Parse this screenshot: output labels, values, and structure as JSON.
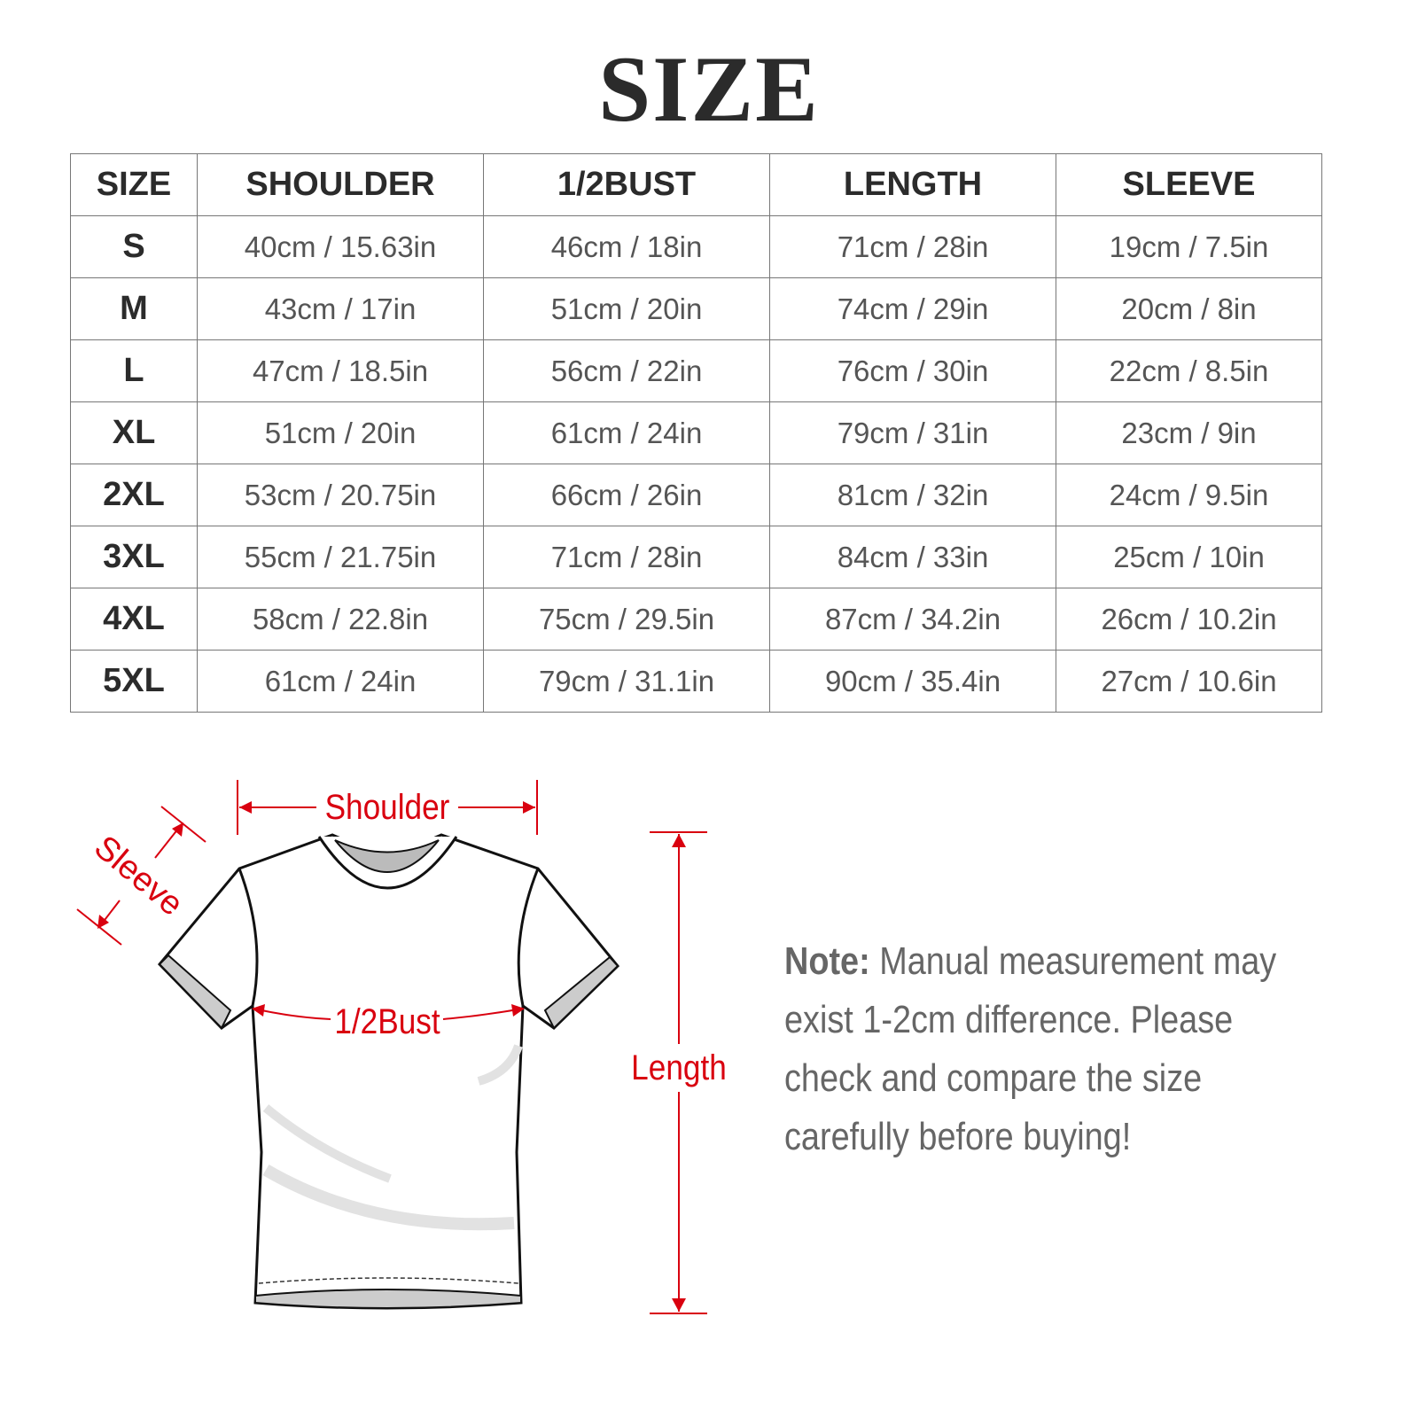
{
  "title": "SIZE",
  "table": {
    "headers": [
      "SIZE",
      "SHOULDER",
      "1/2BUST",
      "LENGTH",
      "SLEEVE"
    ],
    "rows": [
      [
        "S",
        "40cm / 15.63in",
        "46cm / 18in",
        "71cm / 28in",
        "19cm / 7.5in"
      ],
      [
        "M",
        "43cm / 17in",
        "51cm / 20in",
        "74cm / 29in",
        "20cm / 8in"
      ],
      [
        "L",
        "47cm / 18.5in",
        "56cm / 22in",
        "76cm / 30in",
        "22cm / 8.5in"
      ],
      [
        "XL",
        "51cm / 20in",
        "61cm / 24in",
        "79cm / 31in",
        "23cm / 9in"
      ],
      [
        "2XL",
        "53cm / 20.75in",
        "66cm / 26in",
        "81cm / 32in",
        "24cm / 9.5in"
      ],
      [
        "3XL",
        "55cm / 21.75in",
        "71cm / 28in",
        "84cm / 33in",
        "25cm / 10in"
      ],
      [
        "4XL",
        "58cm / 22.8in",
        "75cm / 29.5in",
        "87cm / 34.2in",
        "26cm / 10.2in"
      ],
      [
        "5XL",
        "61cm / 24in",
        "79cm / 31.1in",
        "90cm / 35.4in",
        "27cm / 10.6in"
      ]
    ]
  },
  "diagram": {
    "shoulder_label": "Shoulder",
    "sleeve_label": "Sleeve",
    "bust_label": "1/2Bust",
    "length_label": "Length",
    "accent_color": "#d9000f"
  },
  "note": {
    "label": "Note:",
    "lines": [
      " Manual measurement may",
      "exist 1-2cm difference. Please",
      "check and compare the size",
      "carefully before buying!"
    ]
  }
}
